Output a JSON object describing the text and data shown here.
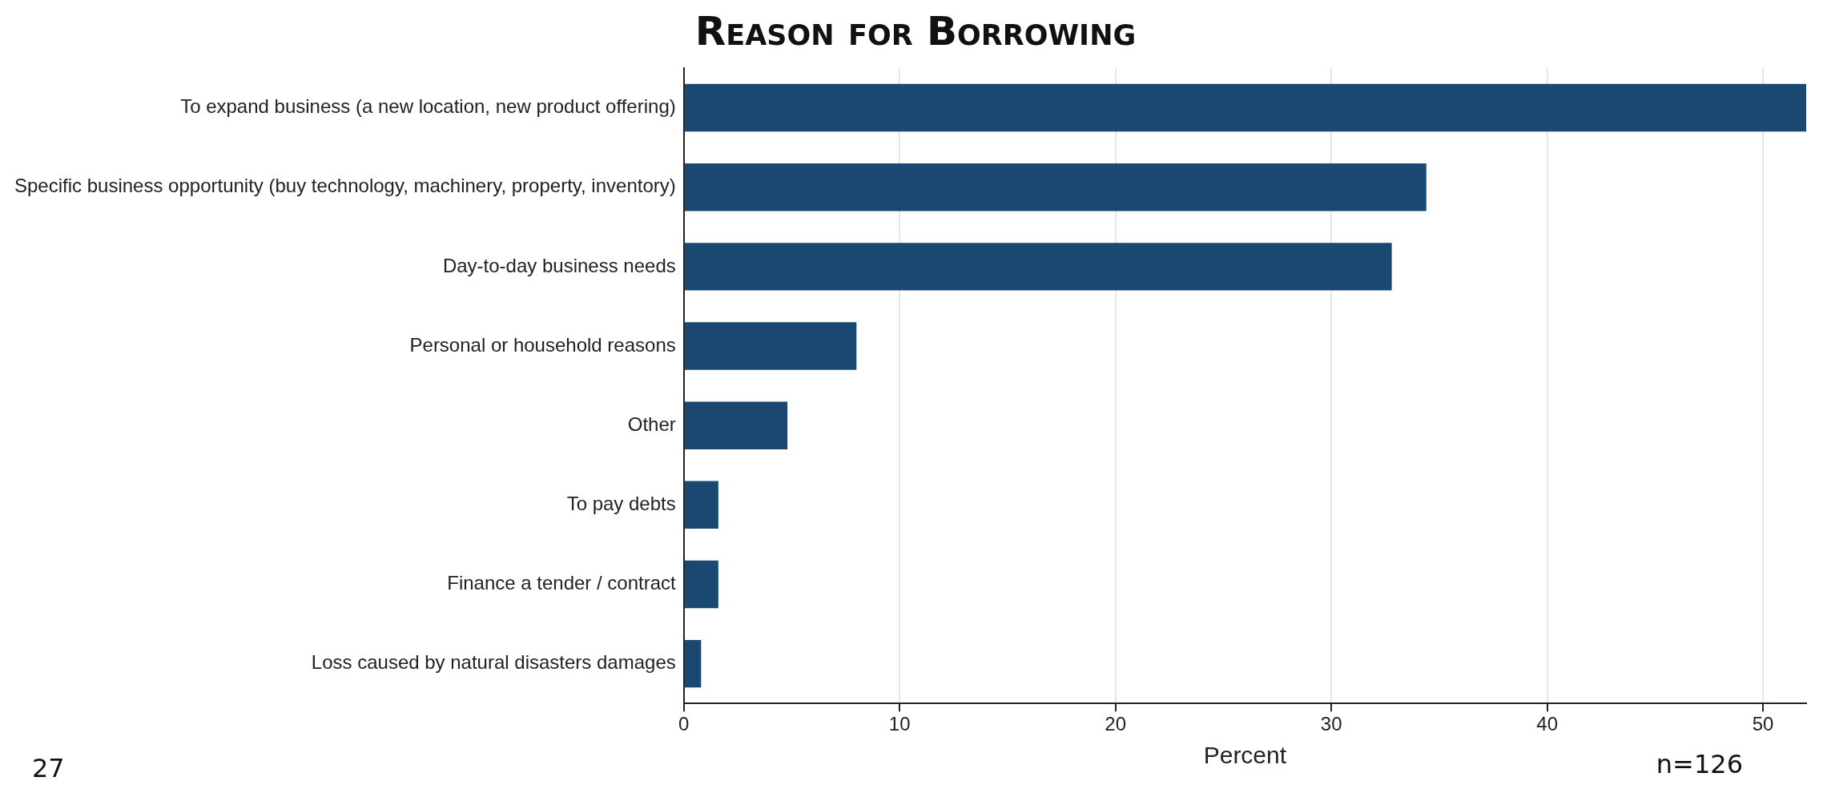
{
  "chart_data": {
    "type": "bar",
    "orientation": "horizontal",
    "title": "Reason for Borrowing",
    "xlabel": "Percent",
    "categories": [
      "To expand business (a new location, new product offering)",
      "Specific business opportunity (buy technology, machinery, property, inventory)",
      "Day-to-day business needs",
      "Personal or household reasons",
      "Other",
      "To pay debts",
      "Finance a tender / contract",
      "Loss caused by natural disasters damages"
    ],
    "values": [
      52.0,
      34.4,
      32.8,
      8.0,
      4.8,
      1.6,
      1.6,
      0.8
    ],
    "color": "#1b4870",
    "xlim": [
      0,
      52
    ],
    "xticks": [
      0,
      10,
      20,
      30,
      40,
      50
    ],
    "grid": "x",
    "annotations": [
      "n=126",
      "27"
    ]
  }
}
